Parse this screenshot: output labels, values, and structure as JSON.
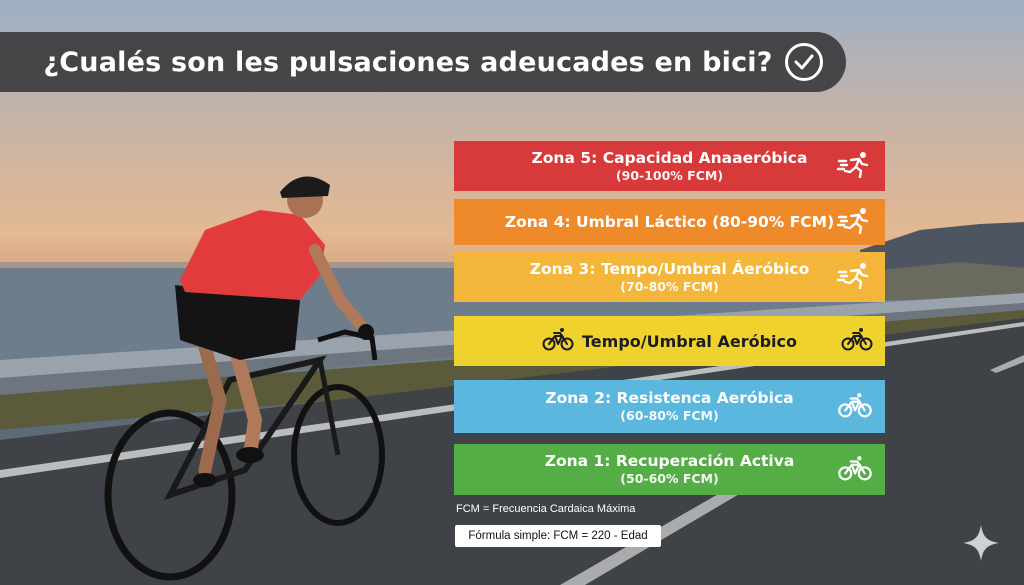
{
  "title": "¿Cualés son les pulsaciones adeucades en bici?",
  "zones": [
    {
      "main": "Zona 5: Capacidad Anaaeróbica",
      "sub": "(90-100% FCM)",
      "icon": "runner-icon",
      "color": "#d8393a"
    },
    {
      "main": "Zona 4: Umbral Láctico (80-90% FCM)",
      "sub": "",
      "icon": "runner-icon",
      "color": "#ef8a2b"
    },
    {
      "main": "Zona 3: Tempo/Umbral Áeróbico",
      "sub": "(70-80% FCM)",
      "icon": "runner-icon",
      "color": "#f3b63a"
    },
    {
      "main": "Tempo/Umbral Aeróbico",
      "sub": "",
      "icon": "cyclist-icon",
      "color": "#f0d22e"
    },
    {
      "main": "Zona 2: Resistenca Aeróbica",
      "sub": "(60-80% FCM)",
      "icon": "cyclist-icon",
      "color": "#5cb7df"
    },
    {
      "main": "Zona 1: Recuperación Activa",
      "sub": "(50-60% FCM)",
      "icon": "cyclist-icon",
      "color": "#55ad45"
    }
  ],
  "note": "FCM = Frecuencia Cardaica Máxima",
  "formula": "Fórmula simple: FCM = 220 - Edad"
}
